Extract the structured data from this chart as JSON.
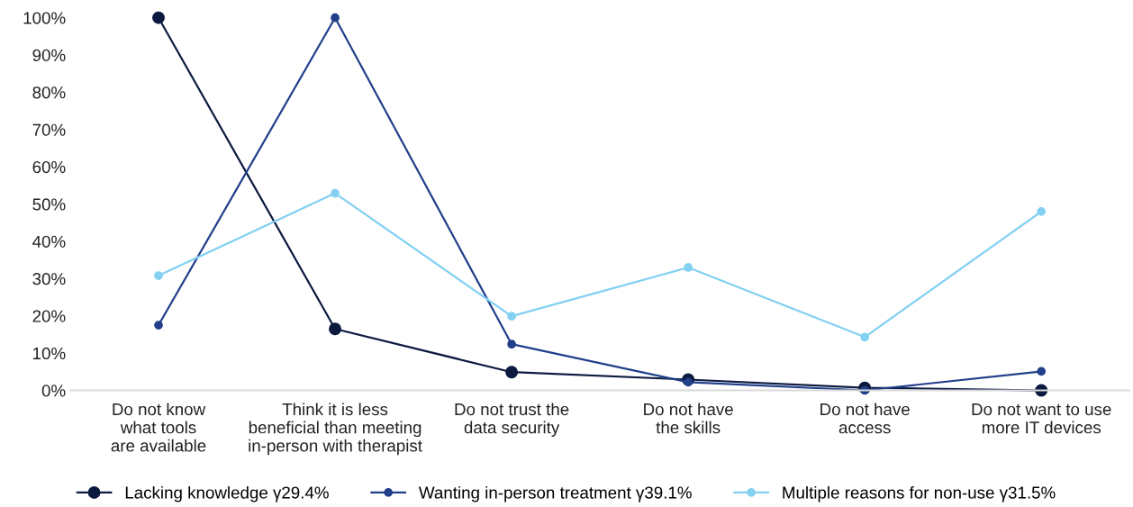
{
  "chart_data": {
    "type": "line",
    "categories": [
      "Do not know\nwhat tools\nare available",
      "Think it is less\nbeneficial than meeting\nin-person with therapist",
      "Do not trust the\ndata security",
      "Do not have\nthe skills",
      "Do not have\naccess",
      "Do not want to use\nmore IT devices"
    ],
    "series": [
      {
        "name": "Lacking knowledge γ29.4%",
        "color": "#0c1a40",
        "values": [
          100,
          16.5,
          4.9,
          2.9,
          0.7,
          0
        ]
      },
      {
        "name": "Wanting in-person treatment γ39.1%",
        "color": "#213f8a",
        "values": [
          17.5,
          100,
          12.4,
          2.2,
          0,
          5.1
        ]
      },
      {
        "name": "Multiple reasons for non-use γ31.5%",
        "color": "#82d0f2",
        "values": [
          30.8,
          52.9,
          19.9,
          33,
          14.3,
          48
        ]
      }
    ],
    "ylim": [
      0,
      100
    ],
    "yticks": [
      {
        "value": 0,
        "label": "0%"
      },
      {
        "value": 10,
        "label": "10%"
      },
      {
        "value": 20,
        "label": "20%"
      },
      {
        "value": 30,
        "label": "30%"
      },
      {
        "value": 40,
        "label": "40%"
      },
      {
        "value": 50,
        "label": "50%"
      },
      {
        "value": 60,
        "label": "60%"
      },
      {
        "value": 70,
        "label": "70%"
      },
      {
        "value": 80,
        "label": "80%"
      },
      {
        "value": 90,
        "label": "90%"
      },
      {
        "value": 100,
        "label": "100%"
      }
    ],
    "grid": false,
    "legend": "bottom",
    "marker": "circle",
    "line_style": "solid"
  }
}
